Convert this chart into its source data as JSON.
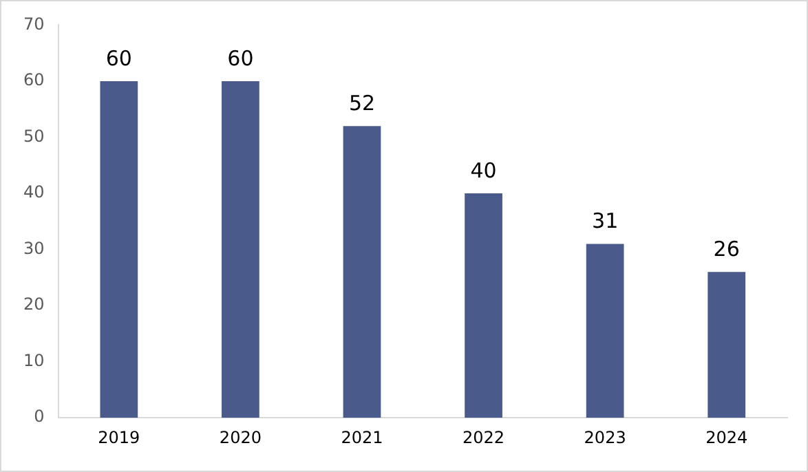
{
  "chart_data": {
    "type": "bar",
    "categories": [
      "2019",
      "2020",
      "2021",
      "2022",
      "2023",
      "2024"
    ],
    "values": [
      60,
      60,
      52,
      40,
      31,
      26
    ],
    "color": "#4a5a8a",
    "ylim": [
      0,
      70
    ],
    "yticks": [
      0,
      10,
      20,
      30,
      40,
      50,
      60,
      70
    ],
    "grid": false,
    "legend": false,
    "data_labels": true
  }
}
